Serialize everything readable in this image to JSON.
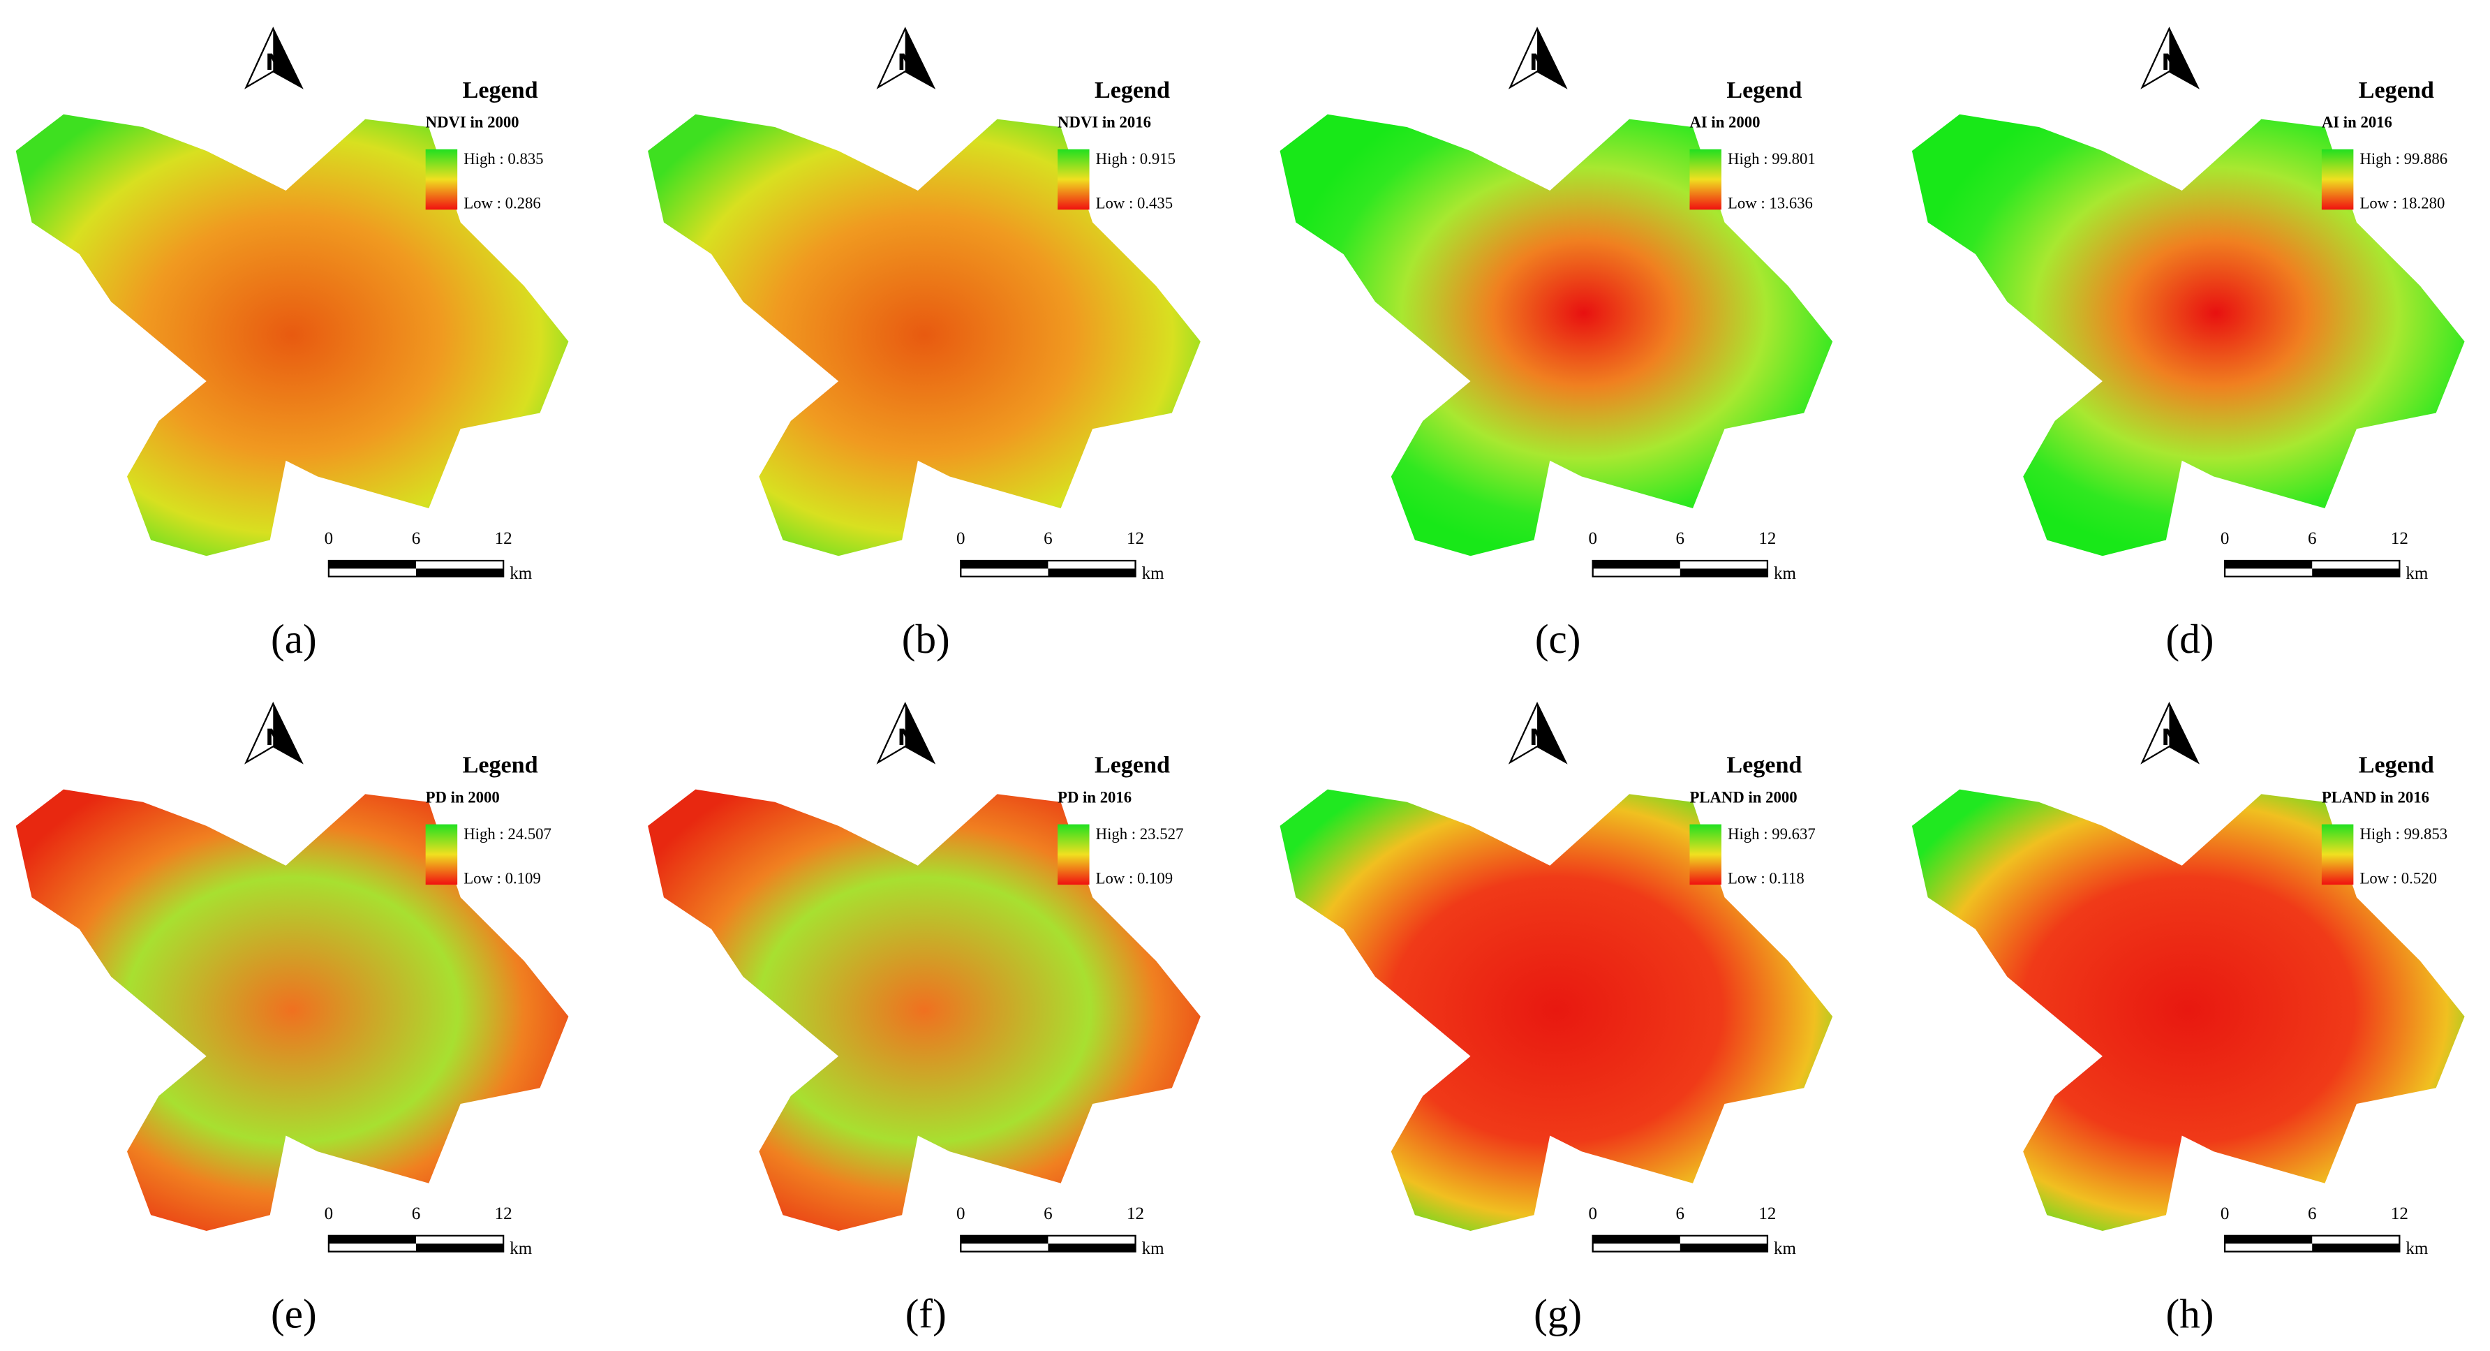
{
  "panels": [
    {
      "label": "(a)",
      "legend": "Legend",
      "title": "NDVI in 2000",
      "high": "High : 0.835",
      "low": "Low : 0.286",
      "scale": [
        "0",
        "6",
        "12"
      ],
      "unit": "km",
      "north": "N",
      "style": "ndvi"
    },
    {
      "label": "(b)",
      "legend": "Legend",
      "title": "NDVI in 2016",
      "high": "High : 0.915",
      "low": "Low : 0.435",
      "scale": [
        "0",
        "6",
        "12"
      ],
      "unit": "km",
      "north": "N",
      "style": "ndvi"
    },
    {
      "label": "(c)",
      "legend": "Legend",
      "title": "AI in 2000",
      "high": "High : 99.801",
      "low": "Low : 13.636",
      "scale": [
        "0",
        "6",
        "12"
      ],
      "unit": "km",
      "north": "N",
      "style": "ai"
    },
    {
      "label": "(d)",
      "legend": "Legend",
      "title": "AI in 2016",
      "high": "High : 99.886",
      "low": "Low : 18.280",
      "scale": [
        "0",
        "6",
        "12"
      ],
      "unit": "km",
      "north": "N",
      "style": "ai"
    },
    {
      "label": "(e)",
      "legend": "Legend",
      "title": "PD in 2000",
      "high": "High : 24.507",
      "low": "Low : 0.109",
      "scale": [
        "0",
        "6",
        "12"
      ],
      "unit": "km",
      "north": "N",
      "style": "pd"
    },
    {
      "label": "(f)",
      "legend": "Legend",
      "title": "PD in 2016",
      "high": "High : 23.527",
      "low": "Low : 0.109",
      "scale": [
        "0",
        "6",
        "12"
      ],
      "unit": "km",
      "north": "N",
      "style": "pd"
    },
    {
      "label": "(g)",
      "legend": "Legend",
      "title": "PLAND in 2000",
      "high": "High : 99.637",
      "low": "Low : 0.118",
      "scale": [
        "0",
        "6",
        "12"
      ],
      "unit": "km",
      "north": "N",
      "style": "pland"
    },
    {
      "label": "(h)",
      "legend": "Legend",
      "title": "PLAND in 2016",
      "high": "High : 99.853",
      "low": "Low : 0.520",
      "scale": [
        "0",
        "6",
        "12"
      ],
      "unit": "km",
      "north": "N",
      "style": "pland"
    }
  ]
}
